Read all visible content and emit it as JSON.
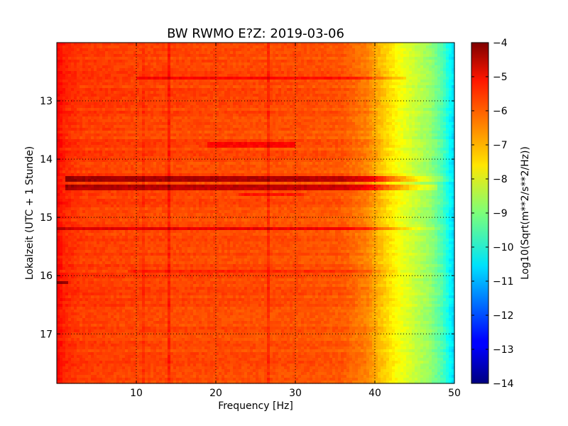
{
  "chart_data": {
    "type": "heatmap",
    "title": "BW RWMO E?Z: 2019-03-06",
    "xlabel": "Frequency [Hz]",
    "ylabel": "Lokalzeit (UTC + 1 Stunde)",
    "xlim": [
      0,
      50
    ],
    "ylim": [
      17.85,
      12.0
    ],
    "y_inverted": true,
    "grid": true,
    "x_ticks": [
      {
        "value": 10,
        "label": "10"
      },
      {
        "value": 20,
        "label": "20"
      },
      {
        "value": 30,
        "label": "30"
      },
      {
        "value": 40,
        "label": "40"
      },
      {
        "value": 50,
        "label": "50"
      }
    ],
    "y_ticks": [
      {
        "value": 13,
        "label": "13"
      },
      {
        "value": 14,
        "label": "14"
      },
      {
        "value": 15,
        "label": "15"
      },
      {
        "value": 16,
        "label": "16"
      },
      {
        "value": 17,
        "label": "17"
      }
    ],
    "colorbar": {
      "label": "Log10(Sqrt(m**2/s**2/Hz))",
      "range": [
        -14,
        -4
      ],
      "colormap": "jet",
      "ticks": [
        {
          "value": -4,
          "label": "−4"
        },
        {
          "value": -5,
          "label": "−5"
        },
        {
          "value": -6,
          "label": "−6"
        },
        {
          "value": -7,
          "label": "−7"
        },
        {
          "value": -8,
          "label": "−8"
        },
        {
          "value": -9,
          "label": "−9"
        },
        {
          "value": -10,
          "label": "−10"
        },
        {
          "value": -11,
          "label": "−11"
        },
        {
          "value": -12,
          "label": "−12"
        },
        {
          "value": -13,
          "label": "−13"
        },
        {
          "value": -14,
          "label": "−14"
        }
      ]
    },
    "frequency_profile": [
      {
        "f": 0,
        "v": -5.2
      },
      {
        "f": 1,
        "v": -5.6
      },
      {
        "f": 3,
        "v": -5.8
      },
      {
        "f": 10,
        "v": -5.9
      },
      {
        "f": 20,
        "v": -5.95
      },
      {
        "f": 30,
        "v": -6.0
      },
      {
        "f": 36,
        "v": -6.1
      },
      {
        "f": 39,
        "v": -6.5
      },
      {
        "f": 41,
        "v": -7.2
      },
      {
        "f": 43,
        "v": -7.8
      },
      {
        "f": 45,
        "v": -8.3
      },
      {
        "f": 47,
        "v": -8.8
      },
      {
        "f": 48.5,
        "v": -9.5
      },
      {
        "f": 49.5,
        "v": -10.3
      },
      {
        "f": 50,
        "v": -10.6
      }
    ],
    "horizontal_bands": [
      {
        "time": 14.35,
        "f_start": 1,
        "f_end": 50,
        "delta": 1.6
      },
      {
        "time": 14.5,
        "f_start": 1,
        "f_end": 48,
        "delta": 1.3
      },
      {
        "time": 15.19,
        "f_start": 0,
        "f_end": 50,
        "delta": 1.0
      },
      {
        "time": 12.6,
        "f_start": 10,
        "f_end": 44,
        "delta": 0.6
      },
      {
        "time": 15.93,
        "f_start": 9,
        "f_end": 43,
        "delta": 0.5
      },
      {
        "time": 13.76,
        "f_start": 19,
        "f_end": 30,
        "delta": 0.6
      },
      {
        "time": 16.12,
        "f_start": 0,
        "f_end": 1.5,
        "delta": 1.3
      },
      {
        "time": 14.6,
        "f_start": 23,
        "f_end": 31,
        "delta": 0.5
      }
    ],
    "vertical_lines": [
      {
        "freq": 14.0,
        "delta": 0.4
      },
      {
        "freq": 26.5,
        "delta": 0.35
      },
      {
        "freq": 11.0,
        "delta": 0.2
      }
    ]
  }
}
